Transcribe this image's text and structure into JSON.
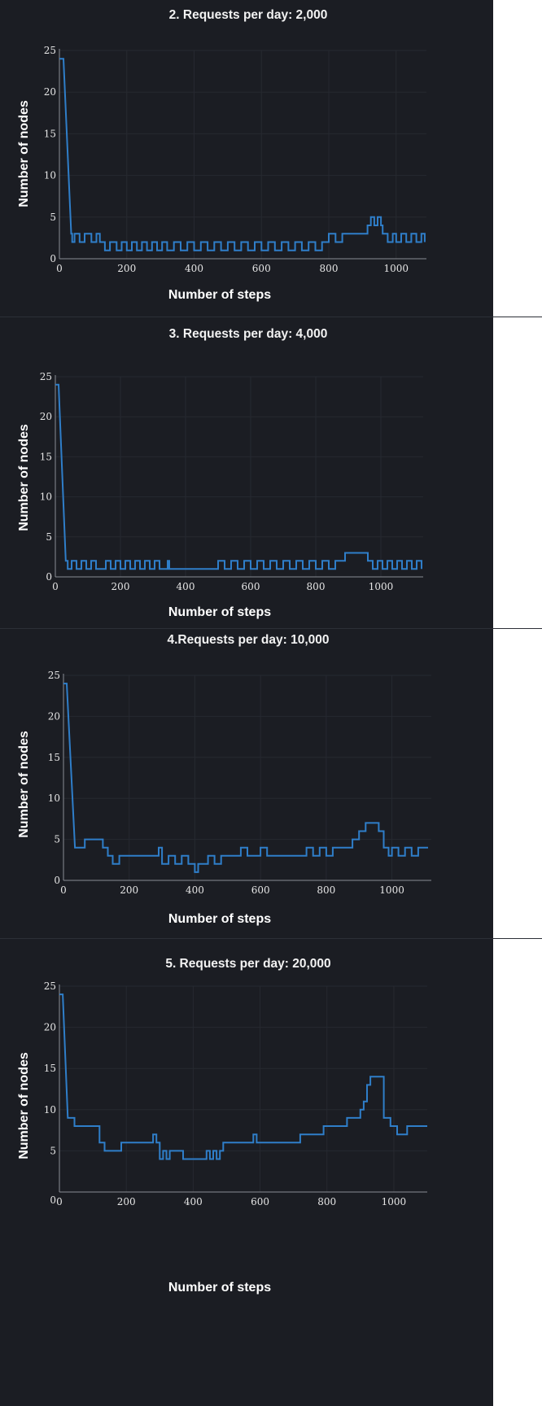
{
  "chart_data": [
    {
      "type": "line",
      "title": "2. Requests per day: 2,000",
      "xlabel": "Number of steps",
      "ylabel": "Number of nodes",
      "xlim": [
        0,
        1090
      ],
      "ylim": [
        0,
        25
      ],
      "x_ticks": [
        0,
        200,
        400,
        600,
        800,
        1000
      ],
      "y_ticks": [
        0,
        5,
        10,
        15,
        20,
        25
      ],
      "color": "#2f7ec9",
      "grid": true,
      "series": [
        {
          "x": [
            0,
            12,
            35,
            38,
            45,
            60,
            75,
            95,
            110,
            120,
            135,
            150,
            170,
            185,
            200,
            215,
            230,
            245,
            260,
            275,
            290,
            305,
            320,
            340,
            360,
            380,
            400,
            420,
            440,
            460,
            480,
            500,
            520,
            540,
            560,
            580,
            600,
            620,
            640,
            660,
            680,
            700,
            720,
            740,
            760,
            780,
            800,
            820,
            840,
            860,
            880,
            900,
            915,
            925,
            935,
            945,
            955,
            960,
            975,
            990,
            1000,
            1015,
            1030,
            1045,
            1060,
            1075,
            1085
          ],
          "y": [
            24,
            24,
            3,
            2,
            3,
            2,
            3,
            2,
            3,
            2,
            1,
            2,
            1,
            2,
            1,
            2,
            1,
            2,
            1,
            2,
            1,
            2,
            1,
            2,
            1,
            2,
            1,
            2,
            1,
            2,
            1,
            2,
            1,
            2,
            1,
            2,
            1,
            2,
            1,
            2,
            1,
            2,
            1,
            2,
            1,
            2,
            3,
            2,
            3,
            3,
            3,
            3,
            4,
            5,
            4,
            5,
            4,
            3,
            2,
            3,
            2,
            3,
            2,
            3,
            2,
            3,
            2
          ]
        }
      ]
    },
    {
      "type": "line",
      "title": "3. Requests per day: 4,000",
      "xlabel": "Number of steps",
      "ylabel": "Number of nodes",
      "xlim": [
        0,
        1130
      ],
      "ylim": [
        0,
        25
      ],
      "x_ticks": [
        0,
        200,
        400,
        600,
        800,
        1000
      ],
      "y_ticks": [
        0,
        5,
        10,
        15,
        20,
        25
      ],
      "color": "#2f7ec9",
      "grid": true,
      "series": [
        {
          "x": [
            0,
            10,
            32,
            38,
            50,
            65,
            80,
            95,
            110,
            125,
            140,
            155,
            170,
            185,
            200,
            215,
            230,
            245,
            260,
            275,
            290,
            305,
            320,
            340,
            345,
            350,
            400,
            450,
            490,
            500,
            520,
            540,
            560,
            580,
            600,
            620,
            640,
            660,
            680,
            700,
            720,
            740,
            760,
            780,
            800,
            820,
            840,
            860,
            880,
            890,
            910,
            950,
            960,
            975,
            990,
            1005,
            1020,
            1035,
            1050,
            1065,
            1080,
            1095,
            1110,
            1125
          ],
          "y": [
            24,
            24,
            2,
            1,
            2,
            1,
            2,
            1,
            2,
            1,
            1,
            2,
            1,
            2,
            1,
            2,
            1,
            2,
            1,
            2,
            1,
            2,
            1,
            1,
            2,
            1,
            1,
            1,
            1,
            2,
            1,
            2,
            1,
            2,
            1,
            2,
            1,
            2,
            1,
            2,
            1,
            2,
            1,
            2,
            1,
            2,
            1,
            2,
            2,
            3,
            3,
            3,
            2,
            1,
            2,
            1,
            2,
            1,
            2,
            1,
            2,
            1,
            2,
            1
          ]
        }
      ]
    },
    {
      "type": "line",
      "title": "4.Requests per day: 10,000",
      "xlabel": "Number of steps",
      "ylabel": "Number of nodes",
      "xlim": [
        0,
        1120
      ],
      "ylim": [
        0,
        25
      ],
      "x_ticks": [
        0,
        200,
        400,
        600,
        800,
        1000
      ],
      "y_ticks": [
        0,
        5,
        10,
        15,
        20,
        25
      ],
      "color": "#2f7ec9",
      "grid": true,
      "series": [
        {
          "x": [
            0,
            10,
            35,
            60,
            65,
            120,
            135,
            150,
            170,
            200,
            240,
            280,
            290,
            300,
            320,
            340,
            360,
            380,
            400,
            410,
            420,
            440,
            460,
            480,
            500,
            530,
            540,
            560,
            600,
            620,
            680,
            720,
            740,
            760,
            780,
            800,
            820,
            860,
            880,
            900,
            920,
            950,
            960,
            975,
            990,
            1000,
            1020,
            1040,
            1060,
            1080,
            1110
          ],
          "y": [
            24,
            24,
            4,
            4,
            5,
            4,
            3,
            2,
            3,
            3,
            3,
            3,
            4,
            2,
            3,
            2,
            3,
            2,
            1,
            2,
            2,
            3,
            2,
            3,
            3,
            3,
            4,
            3,
            4,
            3,
            3,
            3,
            4,
            3,
            4,
            3,
            4,
            4,
            5,
            6,
            7,
            7,
            6,
            4,
            3,
            4,
            3,
            4,
            3,
            4,
            4
          ]
        }
      ]
    },
    {
      "type": "line",
      "title": "5. Requests per day: 20,000",
      "xlabel": "Number of steps",
      "ylabel": "Number of nodes",
      "xlim": [
        0,
        1100
      ],
      "ylim": [
        0,
        25
      ],
      "x_ticks": [
        0,
        200,
        400,
        600,
        800,
        1000
      ],
      "y_ticks": [
        5,
        10,
        15,
        20,
        25
      ],
      "y_tick_zero_label": "0",
      "color": "#2f7ec9",
      "grid": true,
      "series": [
        {
          "x": [
            0,
            10,
            25,
            45,
            120,
            135,
            185,
            280,
            290,
            300,
            310,
            320,
            330,
            350,
            370,
            400,
            440,
            450,
            460,
            470,
            480,
            490,
            580,
            590,
            600,
            720,
            730,
            790,
            800,
            860,
            870,
            900,
            910,
            920,
            930,
            960,
            970,
            990,
            1010,
            1040,
            1100
          ],
          "y": [
            24,
            24,
            9,
            8,
            6,
            5,
            6,
            7,
            6,
            4,
            5,
            4,
            5,
            5,
            4,
            4,
            5,
            4,
            5,
            4,
            5,
            6,
            7,
            6,
            6,
            7,
            7,
            8,
            8,
            9,
            9,
            10,
            11,
            13,
            14,
            14,
            9,
            8,
            7,
            8,
            8
          ]
        }
      ]
    }
  ]
}
